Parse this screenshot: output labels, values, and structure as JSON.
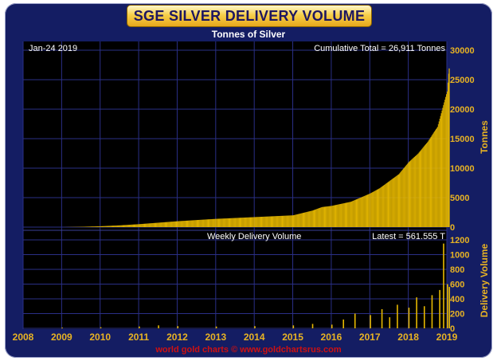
{
  "title": "SGE SILVER DELIVERY VOLUME",
  "subtitle": "Tonnes of Silver",
  "date_label": "Jan-24  2019",
  "cumulative_label": "Cumulative Total = 26,911 Tonnes",
  "weekly_label": "Weekly Delivery Volume",
  "latest_label": "Latest = 561.555 T",
  "footer": "world gold charts © www.goldchartsrus.com",
  "colors": {
    "background": "#000000",
    "frame": "#141d63",
    "grid": "#2a2f86",
    "bars": "#e6b800",
    "axis_text": "#e8b323",
    "footer": "#d01010"
  },
  "chart_data": [
    {
      "type": "bar",
      "title": "SGE SILVER DELIVERY VOLUME",
      "subtitle": "Tonnes of Silver",
      "ylabel": "Tonnes",
      "ylim": [
        0,
        30000
      ],
      "yticks": [
        0,
        5000,
        10000,
        15000,
        20000,
        25000,
        30000
      ],
      "xlim": [
        2008,
        2019
      ],
      "xticks": [
        "2008",
        "2009",
        "2010",
        "2011",
        "2012",
        "2013",
        "2014",
        "2015",
        "2016",
        "2017",
        "2018",
        "2019"
      ],
      "grid": true,
      "series": [
        {
          "x": [
            2009.0,
            2009.5,
            2010.0,
            2010.5,
            2011.0,
            2011.5,
            2012.0,
            2012.5,
            2013.0,
            2013.5,
            2014.0,
            2014.5,
            2015.0,
            2015.5,
            2015.75,
            2016.0,
            2016.5,
            2017.0,
            2017.25,
            2017.5,
            2017.75,
            2018.0,
            2018.25,
            2018.5,
            2018.75,
            2019.0,
            2019.05
          ],
          "y": [
            0,
            50,
            150,
            300,
            500,
            750,
            1000,
            1200,
            1400,
            1550,
            1700,
            1850,
            2000,
            2800,
            3400,
            3600,
            4300,
            5700,
            6600,
            7800,
            9000,
            11000,
            12500,
            14500,
            17000,
            23000,
            26911
          ]
        }
      ]
    },
    {
      "type": "bar",
      "ylabel": "Delivery Volume",
      "ylim": [
        0,
        1200
      ],
      "yticks": [
        0,
        200,
        400,
        600,
        800,
        1000,
        1200
      ],
      "xlim": [
        2008,
        2019
      ],
      "grid": true,
      "series": [
        {
          "x": [
            2009.0,
            2010.0,
            2011.0,
            2011.5,
            2012.0,
            2013.0,
            2014.0,
            2015.0,
            2015.5,
            2016.0,
            2016.3,
            2016.6,
            2017.0,
            2017.3,
            2017.5,
            2017.7,
            2018.0,
            2018.2,
            2018.4,
            2018.6,
            2018.8,
            2018.9,
            2019.0,
            2019.05
          ],
          "y": [
            10,
            15,
            25,
            40,
            30,
            25,
            30,
            40,
            60,
            50,
            120,
            200,
            180,
            260,
            150,
            320,
            280,
            420,
            300,
            450,
            520,
            1150,
            600,
            561.555
          ]
        }
      ]
    }
  ]
}
